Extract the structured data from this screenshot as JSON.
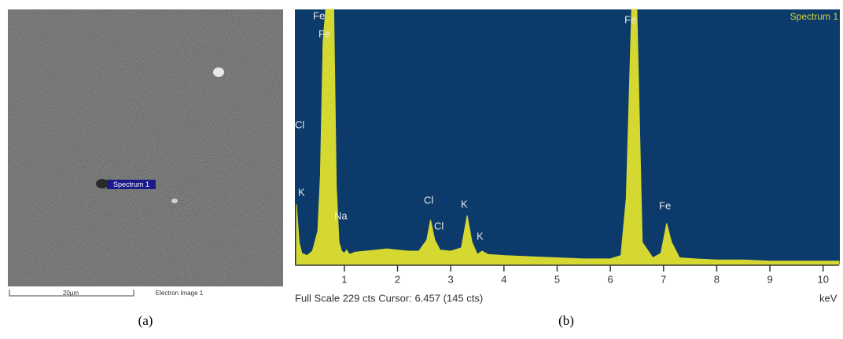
{
  "image_panel": {
    "caption": "(a)",
    "spot_label": "Spectrum 1",
    "scale_bar": "20µm",
    "image_name": "Electron Image 1"
  },
  "chart_data": {
    "type": "area",
    "caption": "(b)",
    "spectrum_name": "Spectrum 1",
    "footer": "Full Scale 229 cts Cursor: 6.457  (145 cts)",
    "x_label": "keV",
    "color": "#d6d832",
    "background": "#0b3a6b",
    "x": [
      0.1,
      0.15,
      0.2,
      0.3,
      0.4,
      0.5,
      0.55,
      0.6,
      0.65,
      0.7,
      0.75,
      0.8,
      0.85,
      0.9,
      0.95,
      1.0,
      1.04,
      1.1,
      1.2,
      1.4,
      1.6,
      1.8,
      2.0,
      2.2,
      2.4,
      2.55,
      2.62,
      2.7,
      2.8,
      3.0,
      3.2,
      3.31,
      3.4,
      3.5,
      3.59,
      3.7,
      4.0,
      4.5,
      5.0,
      5.5,
      6.0,
      6.2,
      6.3,
      6.4,
      6.5,
      6.6,
      6.8,
      6.95,
      7.06,
      7.15,
      7.3,
      7.6,
      8.0,
      8.5,
      9.0,
      9.5,
      10.0,
      10.3
    ],
    "values": [
      54,
      20,
      10,
      8,
      12,
      30,
      80,
      200,
      229,
      229,
      229,
      229,
      70,
      20,
      12,
      10,
      13,
      9,
      11,
      12,
      13,
      14,
      13,
      12,
      12,
      22,
      40,
      22,
      13,
      12,
      15,
      44,
      20,
      9,
      12,
      9,
      8,
      7,
      6,
      5,
      5,
      8,
      60,
      229,
      229,
      20,
      6,
      10,
      37,
      20,
      6,
      5,
      4,
      4,
      3,
      3,
      3,
      3
    ],
    "xlim": [
      0.1,
      10.3
    ],
    "ylim": [
      0,
      229
    ],
    "xticks": [
      1,
      2,
      3,
      4,
      5,
      6,
      7,
      8,
      9,
      10
    ],
    "peak_labels": [
      "Fe",
      "Fe",
      "Cl",
      "K",
      "Na",
      "Cl",
      "Cl",
      "K",
      "K",
      "Fe",
      "Fe"
    ]
  }
}
